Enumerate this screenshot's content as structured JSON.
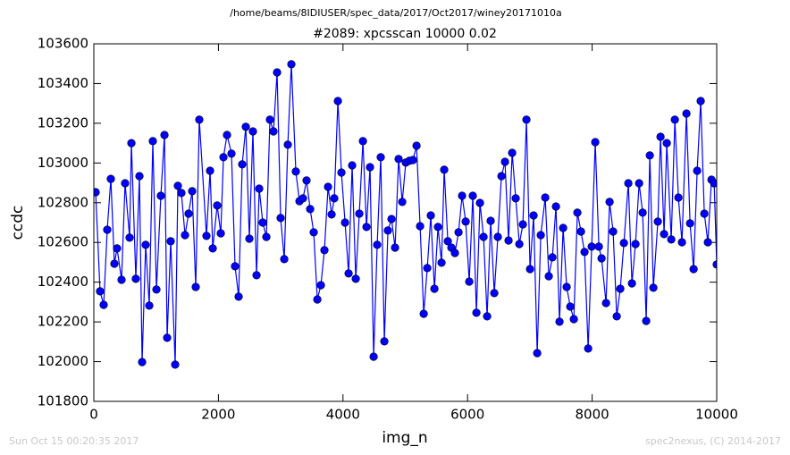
{
  "chart_data": {
    "type": "line",
    "title": "/home/beams/8IDIUSER/spec_data/2017/Oct2017/winey20171010a",
    "subtitle": "#2089: xpcsscan 10000 0.02",
    "xlabel": "img_n",
    "ylabel": "ccdc",
    "footer_left": "Sun Oct 15 00:20:35 2017",
    "footer_right": "spec2nexus, (C) 2014-2017",
    "xlim": [
      0,
      10000
    ],
    "xticks": [
      0,
      2000,
      4000,
      6000,
      8000,
      10000
    ],
    "ylim": [
      101800,
      103600
    ],
    "yticks": [
      101800,
      102000,
      102200,
      102400,
      102600,
      102800,
      103000,
      103200,
      103400,
      103600
    ],
    "x": [
      29,
      100,
      158,
      215,
      273,
      330,
      373,
      445,
      502,
      574,
      603,
      674,
      732,
      775,
      832,
      890,
      947,
      1005,
      1076,
      1134,
      1177,
      1234,
      1306,
      1349,
      1406,
      1464,
      1521,
      1579,
      1636,
      1693,
      1808,
      1866,
      1909,
      1980,
      2038,
      2081,
      2138,
      2210,
      2267,
      2325,
      2382,
      2440,
      2497,
      2554,
      2612,
      2655,
      2712,
      2770,
      2827,
      2884,
      2942,
      2999,
      3057,
      3114,
      3171,
      3243,
      3301,
      3358,
      3415,
      3473,
      3530,
      3588,
      3645,
      3702,
      3760,
      3817,
      3860,
      3918,
      3975,
      4033,
      4090,
      4147,
      4205,
      4262,
      4320,
      4377,
      4434,
      4492,
      4549,
      4606,
      4664,
      4721,
      4779,
      4836,
      4893,
      4951,
      5008,
      5066,
      5123,
      5181,
      5238,
      5296,
      5353,
      5410,
      5468,
      5525,
      5582,
      5625,
      5683,
      5740,
      5797,
      5855,
      5912,
      5970,
      6027,
      6084,
      6142,
      6199,
      6257,
      6314,
      6371,
      6429,
      6486,
      6544,
      6601,
      6658,
      6716,
      6773,
      6831,
      6888,
      6945,
      7003,
      7060,
      7118,
      7175,
      7247,
      7304,
      7362,
      7419,
      7476,
      7534,
      7591,
      7649,
      7706,
      7763,
      7821,
      7878,
      7936,
      7993,
      8050,
      8108,
      8151,
      8223,
      8280,
      8337,
      8395,
      8452,
      8510,
      8581,
      8639,
      8696,
      8754,
      8811,
      8868,
      8926,
      8983,
      9055,
      9098,
      9155,
      9198,
      9270,
      9328,
      9385,
      9442,
      9514,
      9572,
      9629,
      9686,
      9743,
      9801,
      9858,
      9916,
      9959,
      10000
    ],
    "series": [
      {
        "name": "ccdc",
        "color": "#0000ff",
        "values": [
          102853,
          102354,
          102286,
          102664,
          102920,
          102493,
          102570,
          102412,
          102898,
          102624,
          103100,
          102417,
          102934,
          101998,
          102588,
          102282,
          103110,
          102363,
          102835,
          103141,
          102120,
          102606,
          101985,
          102885,
          102849,
          102637,
          102745,
          102858,
          102376,
          103218,
          102633,
          102961,
          102570,
          102786,
          102646,
          103029,
          103141,
          103047,
          102480,
          102327,
          102993,
          103182,
          102619,
          103159,
          102435,
          102871,
          102700,
          102628,
          103218,
          103159,
          103456,
          102723,
          102516,
          103092,
          103497,
          102957,
          102808,
          102822,
          102912,
          102768,
          102651,
          102313,
          102385,
          102561,
          102880,
          102741,
          102822,
          103312,
          102952,
          102700,
          102444,
          102988,
          102417,
          102745,
          103110,
          102678,
          102979,
          102025,
          102588,
          103029,
          102102,
          102660,
          102718,
          102574,
          103020,
          102804,
          103002,
          103011,
          103015,
          103087,
          102682,
          102241,
          102471,
          102736,
          102367,
          102678,
          102498,
          102966,
          102606,
          102574,
          102547,
          102651,
          102835,
          102705,
          102403,
          102835,
          102246,
          102799,
          102628,
          102228,
          102709,
          102345,
          102628,
          102934,
          103006,
          102610,
          103051,
          102822,
          102592,
          102691,
          103218,
          102466,
          102736,
          102043,
          102637,
          102826,
          102430,
          102525,
          102781,
          102201,
          102673,
          102376,
          102277,
          102214,
          102750,
          102655,
          102552,
          102066,
          102579,
          103105,
          102579,
          102520,
          102295,
          102804,
          102655,
          102228,
          102367,
          102597,
          102898,
          102394,
          102592,
          102898,
          102750,
          102205,
          103038,
          102372,
          102705,
          103132,
          102642,
          103100,
          102615,
          103218,
          102826,
          102601,
          103249,
          102696,
          102466,
          102961,
          103312,
          102745,
          102601,
          102916,
          102898,
          102489
        ]
      }
    ]
  }
}
